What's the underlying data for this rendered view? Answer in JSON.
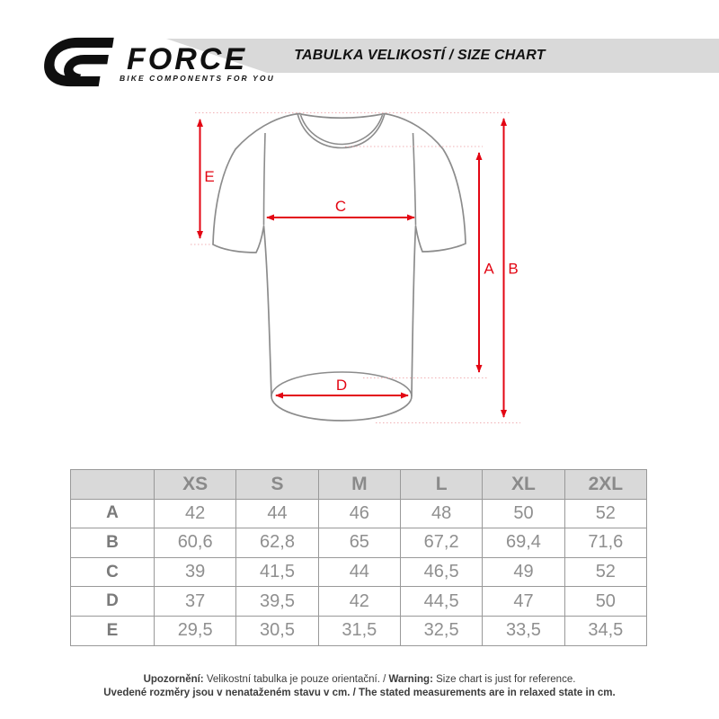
{
  "header": {
    "title": "TABULKA VELIKOSTÍ / SIZE CHART",
    "brand": {
      "name": "FORCE",
      "tagline": "BIKE COMPONENTS FOR YOU"
    },
    "band_color": "#d9d9d9"
  },
  "diagram": {
    "labels": {
      "A": "A",
      "B": "B",
      "C": "C",
      "D": "D",
      "E": "E"
    },
    "arrow_color": "#e30613",
    "outline_color": "#8c8c8c"
  },
  "size_table": {
    "corner": "",
    "columns": [
      "XS",
      "S",
      "M",
      "L",
      "XL",
      "2XL"
    ],
    "rows": [
      {
        "label": "A",
        "values": [
          "42",
          "44",
          "46",
          "48",
          "50",
          "52"
        ]
      },
      {
        "label": "B",
        "values": [
          "60,6",
          "62,8",
          "65",
          "67,2",
          "69,4",
          "71,6"
        ]
      },
      {
        "label": "C",
        "values": [
          "39",
          "41,5",
          "44",
          "46,5",
          "49",
          "52"
        ]
      },
      {
        "label": "D",
        "values": [
          "37",
          "39,5",
          "42",
          "44,5",
          "47",
          "50"
        ]
      },
      {
        "label": "E",
        "values": [
          "29,5",
          "30,5",
          "31,5",
          "32,5",
          "33,5",
          "34,5"
        ]
      }
    ]
  },
  "footer": {
    "line1_bold1": "Upozornění:",
    "line1_text1": " Velikostní tabulka je pouze orientační. / ",
    "line1_bold2": "Warning:",
    "line1_text2": " Size chart is just for reference.",
    "line2": "Uvedené rozměry jsou v nenataženém stavu v cm. / The stated measurements are in relaxed state in cm."
  }
}
